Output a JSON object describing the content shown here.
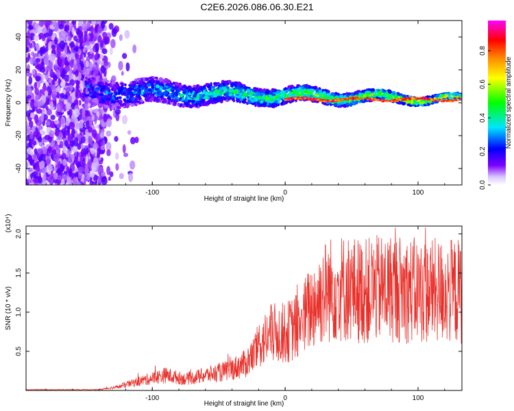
{
  "title": "C2E6.2026.086.06.30.E21",
  "chart_data": [
    {
      "type": "heatmap",
      "xlabel": "Height of straight line (km)",
      "ylabel": "Frequency (Hz)",
      "xlim": [
        -195,
        133
      ],
      "ylim": [
        -50,
        50
      ],
      "xticks": [
        -100,
        0,
        100
      ],
      "yticks": [
        -40,
        -20,
        0,
        20,
        40
      ],
      "colorbar": {
        "label": "Normalized spectral amplitude",
        "range": [
          0,
          0.98
        ],
        "ticks": [
          0.0,
          0.2,
          0.4,
          0.6,
          0.8
        ]
      }
    },
    {
      "type": "line",
      "xlabel": "Height of straight line (km)",
      "ylabel": "SNR (10 * v/v)",
      "yscale_label": "(x10⁴)",
      "xlim": [
        -195,
        133
      ],
      "ylim": [
        0,
        2.1
      ],
      "xticks": [
        -100,
        0,
        100
      ],
      "yticks": [
        0.5,
        1.0,
        1.5,
        2.0
      ],
      "color": "#e8302a",
      "series_profile": [
        {
          "x": -195,
          "y": 0.0
        },
        {
          "x": -140,
          "y": 0.01
        },
        {
          "x": -125,
          "y": 0.05
        },
        {
          "x": -110,
          "y": 0.12
        },
        {
          "x": -90,
          "y": 0.2
        },
        {
          "x": -75,
          "y": 0.15
        },
        {
          "x": -60,
          "y": 0.2
        },
        {
          "x": -45,
          "y": 0.25
        },
        {
          "x": -30,
          "y": 0.35
        },
        {
          "x": -22,
          "y": 0.5
        },
        {
          "x": -20,
          "y": 0.6
        },
        {
          "x": -10,
          "y": 0.75
        },
        {
          "x": 0,
          "y": 0.75
        },
        {
          "x": 10,
          "y": 0.85
        },
        {
          "x": 20,
          "y": 1.1
        },
        {
          "x": 30,
          "y": 1.3
        },
        {
          "x": 40,
          "y": 1.35
        },
        {
          "x": 60,
          "y": 1.3
        },
        {
          "x": 80,
          "y": 1.35
        },
        {
          "x": 100,
          "y": 1.3
        },
        {
          "x": 120,
          "y": 1.3
        },
        {
          "x": 133,
          "y": 1.3
        }
      ]
    }
  ]
}
